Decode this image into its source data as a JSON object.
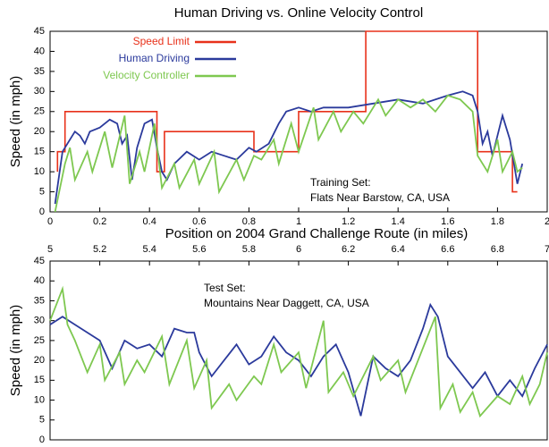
{
  "chart_data": [
    {
      "type": "line",
      "title": "Human Driving vs. Online Velocity Control",
      "ylabel": "Speed (in mph)",
      "xlabel": "Position on 2004 Grand Challenge Route (in miles)",
      "annotations": [
        "Training Set:",
        "Flats Near Barstow, CA, USA"
      ],
      "xlim": [
        0,
        2
      ],
      "xticks": [
        0,
        0.2,
        0.4,
        0.6,
        0.8,
        1,
        1.2,
        1.4,
        1.6,
        1.8,
        2
      ],
      "ylim": [
        0,
        45
      ],
      "yticks": [
        0,
        5,
        10,
        15,
        20,
        25,
        30,
        35,
        40,
        45
      ],
      "legend": "upper left",
      "series": [
        {
          "name": "Speed Limit",
          "color": "#e8311a",
          "x": [
            0.03,
            0.03,
            0.06,
            0.06,
            0.43,
            0.43,
            0.46,
            0.46,
            0.82,
            0.82,
            1.0,
            1.0,
            1.27,
            1.27,
            1.72,
            1.72,
            1.86,
            1.86,
            1.88
          ],
          "values": [
            10,
            15,
            15,
            25,
            25,
            10,
            10,
            20,
            20,
            15,
            15,
            25,
            25,
            45,
            45,
            15,
            15,
            5,
            5
          ]
        },
        {
          "name": "Human Driving",
          "color": "#2b3a9c",
          "x": [
            0.02,
            0.05,
            0.08,
            0.1,
            0.12,
            0.14,
            0.16,
            0.2,
            0.24,
            0.27,
            0.29,
            0.31,
            0.33,
            0.35,
            0.38,
            0.41,
            0.43,
            0.45,
            0.47,
            0.5,
            0.55,
            0.6,
            0.65,
            0.7,
            0.75,
            0.8,
            0.83,
            0.88,
            0.92,
            0.95,
            1.0,
            1.05,
            1.1,
            1.2,
            1.3,
            1.4,
            1.5,
            1.6,
            1.66,
            1.7,
            1.72,
            1.74,
            1.76,
            1.78,
            1.8,
            1.82,
            1.85,
            1.88,
            1.9
          ],
          "values": [
            2,
            15,
            18,
            20,
            19,
            17,
            20,
            21,
            23,
            22,
            17,
            19,
            8,
            16,
            22,
            23,
            16,
            10,
            8,
            12,
            15,
            13,
            15,
            14,
            13,
            16,
            15,
            17,
            22,
            25,
            26,
            25,
            26,
            26,
            27,
            28,
            27,
            29,
            30,
            29,
            25,
            17,
            20,
            14,
            19,
            24,
            18,
            7,
            12
          ]
        },
        {
          "name": "Velocity Controller",
          "color": "#7ec850",
          "x": [
            0.02,
            0.06,
            0.08,
            0.1,
            0.15,
            0.17,
            0.22,
            0.25,
            0.3,
            0.32,
            0.36,
            0.38,
            0.42,
            0.45,
            0.5,
            0.52,
            0.58,
            0.6,
            0.66,
            0.68,
            0.75,
            0.78,
            0.82,
            0.85,
            0.9,
            0.92,
            0.97,
            1.0,
            1.06,
            1.08,
            1.14,
            1.17,
            1.22,
            1.26,
            1.32,
            1.35,
            1.4,
            1.45,
            1.5,
            1.55,
            1.6,
            1.65,
            1.7,
            1.72,
            1.76,
            1.8,
            1.82,
            1.86,
            1.88,
            1.9
          ],
          "values": [
            0,
            12,
            16,
            8,
            15,
            10,
            20,
            11,
            24,
            7,
            15,
            10,
            22,
            6,
            12,
            6,
            13,
            7,
            15,
            5,
            13,
            8,
            14,
            13,
            18,
            12,
            22,
            15,
            26,
            18,
            25,
            20,
            25,
            22,
            28,
            24,
            28,
            26,
            28,
            25,
            29,
            28,
            25,
            14,
            10,
            18,
            10,
            15,
            10,
            11
          ]
        }
      ]
    },
    {
      "type": "line",
      "ylabel": "Speed (in mph)",
      "annotations": [
        "Test Set:",
        "Mountains Near Daggett, CA, USA"
      ],
      "xlim": [
        5,
        7
      ],
      "xticks": [
        5,
        5.2,
        5.4,
        5.6,
        5.8,
        6,
        6.2,
        6.4,
        6.6,
        6.8,
        7
      ],
      "ylim": [
        0,
        45
      ],
      "yticks": [
        0,
        5,
        10,
        15,
        20,
        25,
        30,
        35,
        40,
        45
      ],
      "series": [
        {
          "color": "#2b3a9c",
          "x": [
            5,
            5.05,
            5.1,
            5.15,
            5.2,
            5.25,
            5.3,
            5.35,
            5.4,
            5.45,
            5.5,
            5.55,
            5.58,
            5.6,
            5.65,
            5.7,
            5.75,
            5.8,
            5.85,
            5.9,
            5.95,
            6.0,
            6.05,
            6.1,
            6.15,
            6.2,
            6.25,
            6.3,
            6.35,
            6.4,
            6.45,
            6.5,
            6.53,
            6.56,
            6.6,
            6.65,
            6.7,
            6.75,
            6.8,
            6.85,
            6.9,
            6.95,
            7.0
          ],
          "values": [
            29,
            31,
            29,
            27,
            25,
            18,
            25,
            23,
            24,
            21,
            28,
            27,
            27,
            22,
            16,
            20,
            24,
            19,
            21,
            26,
            22,
            20,
            16,
            21,
            24,
            17,
            6,
            21,
            18,
            16,
            20,
            28,
            34,
            31,
            21,
            17,
            13,
            17,
            11,
            15,
            11,
            18,
            24
          ]
        },
        {
          "color": "#7ec850",
          "x": [
            5,
            5.05,
            5.07,
            5.1,
            5.15,
            5.2,
            5.22,
            5.28,
            5.3,
            5.35,
            5.38,
            5.45,
            5.48,
            5.55,
            5.58,
            5.63,
            5.65,
            5.72,
            5.75,
            5.82,
            5.85,
            5.9,
            5.93,
            6.0,
            6.03,
            6.1,
            6.12,
            6.18,
            6.22,
            6.3,
            6.33,
            6.4,
            6.43,
            6.55,
            6.57,
            6.62,
            6.65,
            6.7,
            6.73,
            6.8,
            6.85,
            6.9,
            6.93,
            6.97,
            7.0
          ],
          "values": [
            30,
            38,
            29,
            25,
            17,
            24,
            15,
            22,
            14,
            20,
            17,
            26,
            14,
            25,
            13,
            20,
            8,
            14,
            10,
            16,
            14,
            24,
            17,
            22,
            13,
            30,
            12,
            17,
            11,
            21,
            15,
            20,
            12,
            31,
            8,
            14,
            7,
            12,
            6,
            11,
            9,
            16,
            9,
            14,
            22
          ]
        }
      ]
    }
  ]
}
